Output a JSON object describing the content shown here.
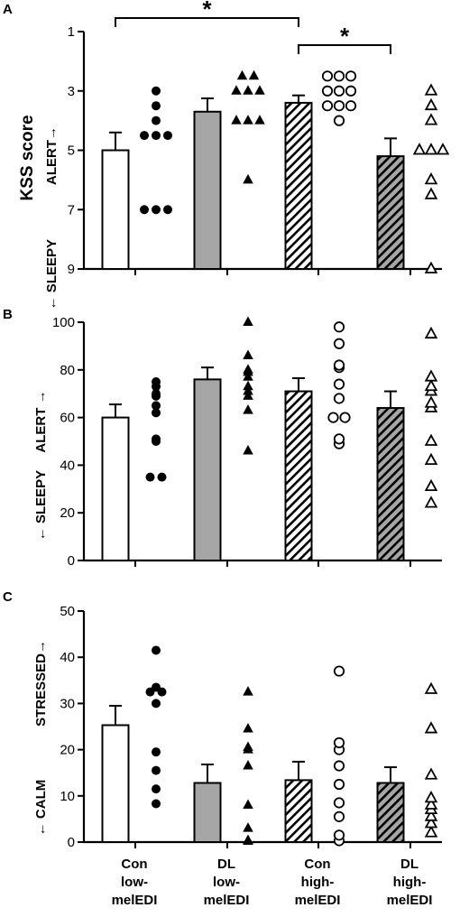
{
  "categories": [
    "Con\nlow-\nmelEDI",
    "DL\nlow-\nmelEDI",
    "Con\nhigh-\nmelEDI",
    "DL\nhigh-\nmelEDI"
  ],
  "group_styles": [
    "open",
    "gray",
    "hatched",
    "hatched-gray"
  ],
  "marker_styles": [
    "filled-circle",
    "filled-triangle",
    "open-circle",
    "open-triangle"
  ],
  "colors": {
    "bar_gray": "#a6a6a6",
    "black": "#000000",
    "white": "#ffffff"
  },
  "chart_data": [
    {
      "type": "bar",
      "panel_label": "A",
      "ylabel": "KSS score",
      "ylabel_top": "ALERT→",
      "ylabel_bottom": "← SLEEPY",
      "ylim": [
        1,
        9
      ],
      "inverted": true,
      "yticks": [
        1,
        3,
        5,
        7,
        9
      ],
      "bar_means": [
        5.0,
        3.7,
        3.4,
        5.2
      ],
      "bar_errors": [
        0.6,
        0.45,
        0.25,
        0.6
      ],
      "points": [
        [
          3.0,
          3.5,
          4.0,
          4.5,
          4.5,
          4.5,
          7.0,
          7.0,
          7.0
        ],
        [
          2.5,
          2.5,
          3.0,
          3.0,
          3.0,
          4.0,
          4.0,
          4.0,
          6.0
        ],
        [
          2.5,
          2.5,
          2.5,
          3.0,
          3.0,
          3.0,
          3.5,
          3.5,
          3.5,
          4.0
        ],
        [
          3.0,
          3.5,
          4.0,
          5.0,
          5.0,
          5.0,
          6.0,
          6.5,
          9.0
        ]
      ],
      "significance": [
        {
          "from": 0,
          "to": 2,
          "label": "*"
        },
        {
          "from": 2,
          "to": 3,
          "label": "*"
        }
      ]
    },
    {
      "type": "bar",
      "panel_label": "B",
      "ylabel_top": "ALERT →",
      "ylabel_bottom": "← SLEEPY",
      "ylim": [
        0,
        100
      ],
      "inverted": false,
      "yticks": [
        0,
        20,
        40,
        60,
        80,
        100
      ],
      "bar_means": [
        60,
        76,
        71,
        64
      ],
      "bar_errors": [
        5.5,
        5,
        5.5,
        7
      ],
      "points": [
        [
          35,
          35,
          50,
          51,
          62,
          65,
          69,
          70,
          73,
          75
        ],
        [
          46,
          63,
          69,
          71,
          73,
          77,
          79,
          80,
          86,
          100
        ],
        [
          49,
          51,
          60,
          60,
          68,
          74,
          81,
          82,
          91,
          98
        ],
        [
          24,
          31,
          42,
          50,
          64,
          66,
          71,
          73,
          77,
          95
        ]
      ],
      "significance": []
    },
    {
      "type": "bar",
      "panel_label": "C",
      "ylabel_top": "STRESSED→",
      "ylabel_bottom": "← CALM",
      "ylim": [
        0,
        50
      ],
      "inverted": false,
      "yticks": [
        0,
        10,
        20,
        30,
        40,
        50
      ],
      "bar_means": [
        25.3,
        12.8,
        13.4,
        12.8
      ],
      "bar_errors": [
        4.2,
        4.0,
        4.0,
        3.4
      ],
      "points": [
        [
          8.3,
          11.5,
          15.5,
          19.5,
          30.0,
          32.5,
          32.5,
          33.5,
          41.5
        ],
        [
          0.2,
          0.4,
          3.0,
          8.0,
          16.5,
          20.0,
          20.5,
          24.5,
          32.5
        ],
        [
          0.3,
          1.5,
          5.5,
          8.5,
          12.5,
          16.5,
          20.0,
          21.5,
          37.0
        ],
        [
          2.0,
          4.0,
          5.5,
          7.0,
          8.0,
          9.5,
          14.5,
          24.5,
          33.0
        ]
      ],
      "significance": []
    }
  ]
}
